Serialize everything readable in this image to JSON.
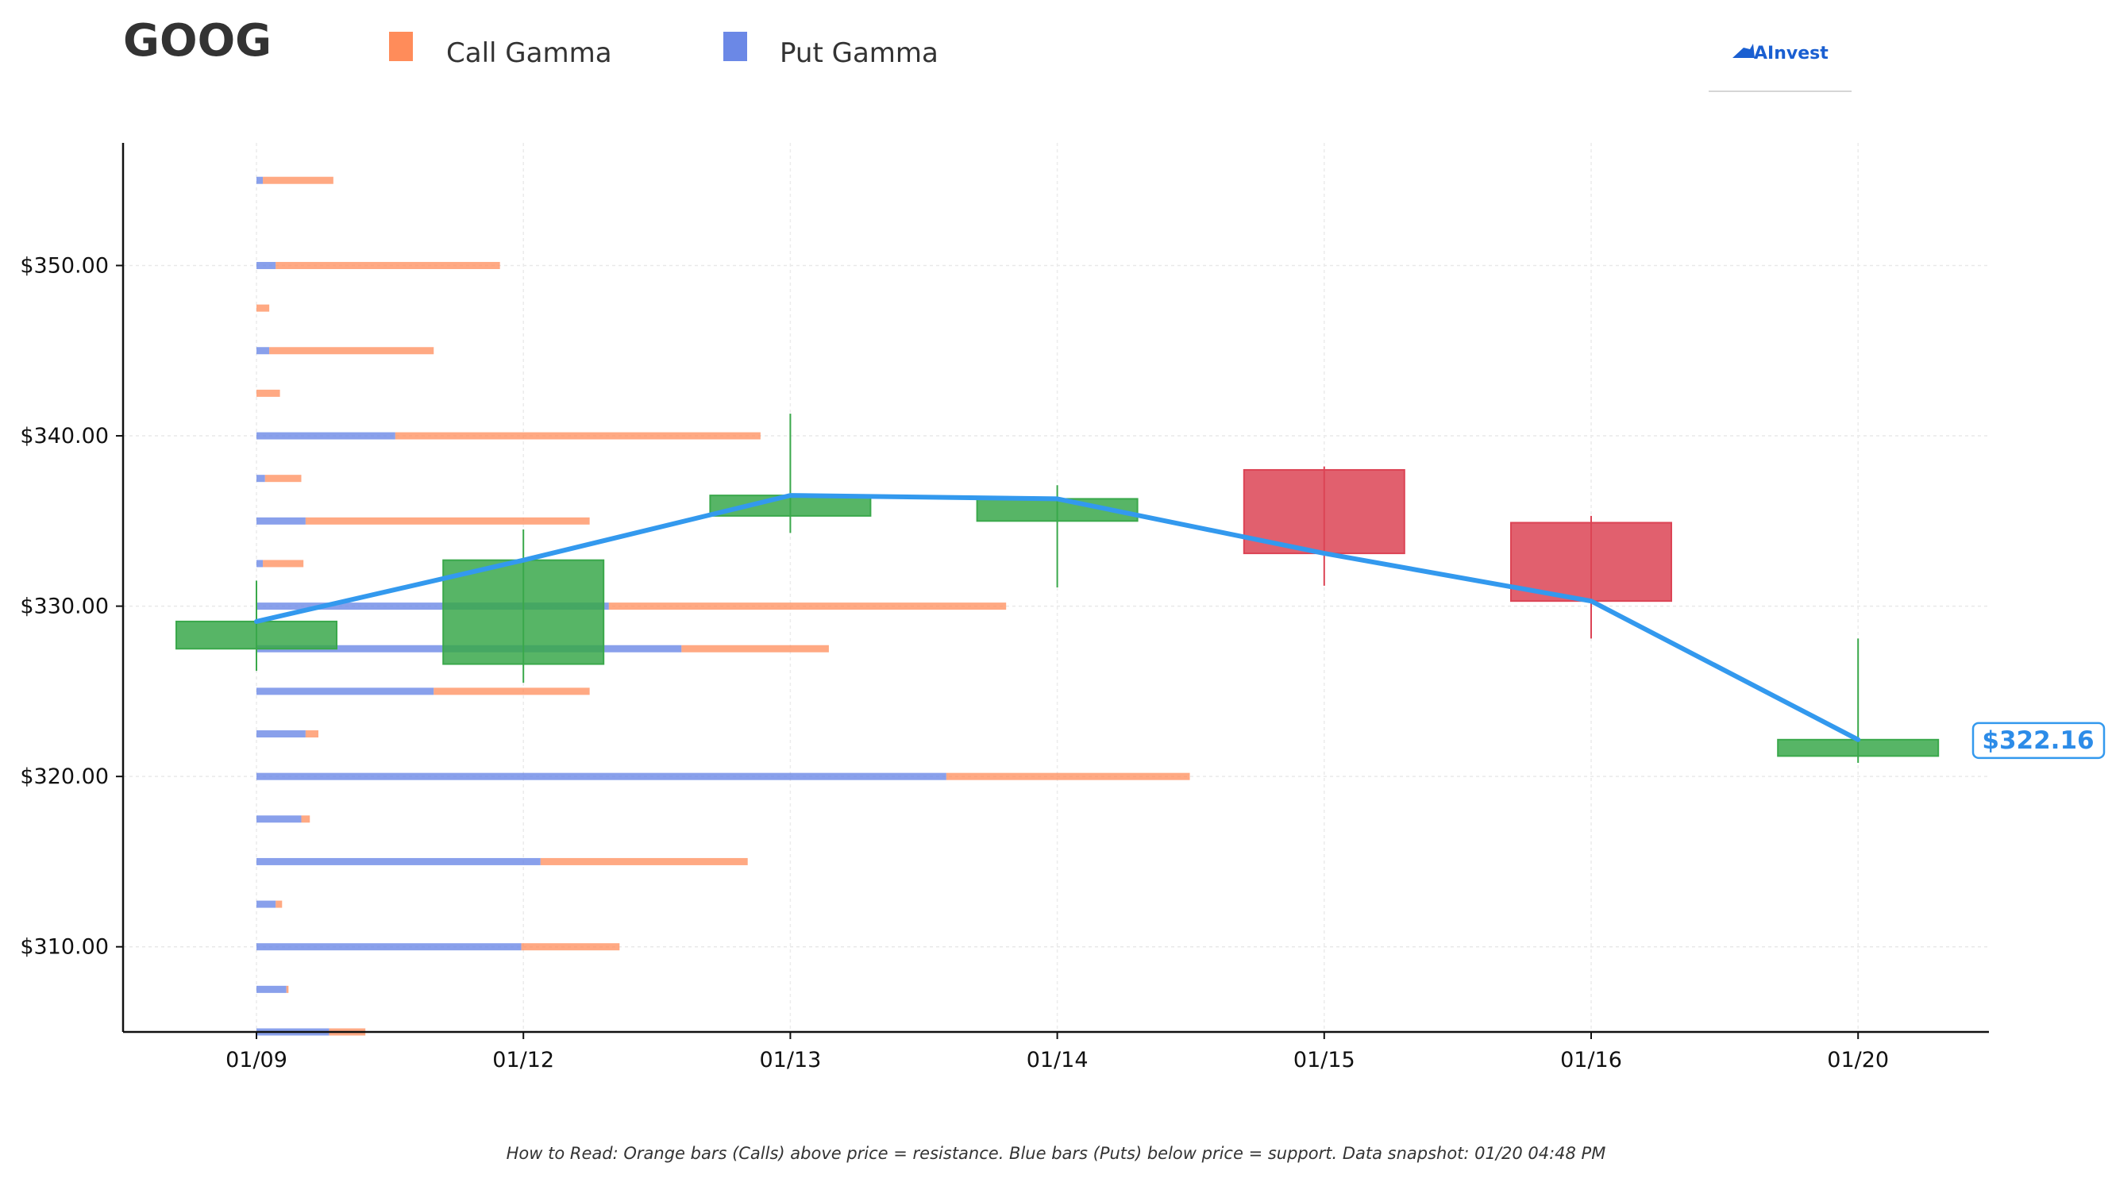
{
  "header": {
    "ticker": "GOOG",
    "logo_text": "AInvest"
  },
  "legend": {
    "call_label": "Call Gamma",
    "put_label": "Put Gamma",
    "call_color": "#ff8c5a",
    "put_color": "#6b88e6"
  },
  "footer": {
    "note": "How to Read: Orange bars (Calls) above price = resistance. Blue bars (Puts) below price = support. Data snapshot: 01/20 04:48 PM"
  },
  "chart_data": {
    "type": "candlestick",
    "ylim": [
      305,
      357.2
    ],
    "y_ticks": [
      310,
      320,
      330,
      340,
      350
    ],
    "y_tick_labels": [
      "$310.00",
      "$320.00",
      "$330.00",
      "$340.00",
      "$350.00"
    ],
    "categories": [
      "01/09",
      "01/12",
      "01/13",
      "01/14",
      "01/15",
      "01/16",
      "01/20"
    ],
    "candles": [
      {
        "date": "01/09",
        "open": 327.5,
        "close": 329.1,
        "high": 331.5,
        "low": 326.2
      },
      {
        "date": "01/12",
        "open": 326.6,
        "close": 332.7,
        "high": 334.5,
        "low": 325.5
      },
      {
        "date": "01/13",
        "open": 335.3,
        "close": 336.5,
        "high": 341.3,
        "low": 334.3
      },
      {
        "date": "01/14",
        "open": 335.0,
        "close": 336.3,
        "high": 337.1,
        "low": 331.1
      },
      {
        "date": "01/15",
        "open": 338.0,
        "close": 333.1,
        "high": 338.2,
        "low": 331.2
      },
      {
        "date": "01/16",
        "open": 334.9,
        "close": 330.3,
        "high": 335.3,
        "low": 328.1
      },
      {
        "date": "01/20",
        "open": 321.2,
        "close": 322.16,
        "high": 328.1,
        "low": 320.8
      }
    ],
    "price_line": [
      329.1,
      332.7,
      336.5,
      336.3,
      333.1,
      330.3,
      322.16
    ],
    "last_price_label": "$322.16",
    "line_color": "#3399ee",
    "up_color": "#3aa84b",
    "down_color": "#dc4455",
    "gamma_units": "relative",
    "gamma_levels": [
      {
        "strike": 305,
        "put": 3.4,
        "call": 1.7
      },
      {
        "strike": 307.5,
        "put": 1.4,
        "call": 0.1
      },
      {
        "strike": 310,
        "put": 12.4,
        "call": 4.6
      },
      {
        "strike": 312.5,
        "put": 0.9,
        "call": 0.3
      },
      {
        "strike": 315,
        "put": 13.3,
        "call": 9.7
      },
      {
        "strike": 317.5,
        "put": 2.1,
        "call": 0.4
      },
      {
        "strike": 320,
        "put": 32.3,
        "call": 11.4
      },
      {
        "strike": 322.5,
        "put": 2.3,
        "call": 0.6
      },
      {
        "strike": 325,
        "put": 8.3,
        "call": 7.3
      },
      {
        "strike": 327.5,
        "put": 19.9,
        "call": 6.9
      },
      {
        "strike": 330,
        "put": 16.5,
        "call": 18.6
      },
      {
        "strike": 332.5,
        "put": 0.3,
        "call": 1.9
      },
      {
        "strike": 335,
        "put": 2.3,
        "call": 13.3
      },
      {
        "strike": 337.5,
        "put": 0.4,
        "call": 1.7
      },
      {
        "strike": 340,
        "put": 6.5,
        "call": 17.1
      },
      {
        "strike": 342.5,
        "put": 0.0,
        "call": 1.1
      },
      {
        "strike": 345,
        "put": 0.6,
        "call": 7.7
      },
      {
        "strike": 347.5,
        "put": 0.0,
        "call": 0.6
      },
      {
        "strike": 350,
        "put": 0.9,
        "call": 10.5
      },
      {
        "strike": 355,
        "put": 0.3,
        "call": 3.3
      }
    ],
    "grid": true,
    "legend_position": "top-left"
  }
}
